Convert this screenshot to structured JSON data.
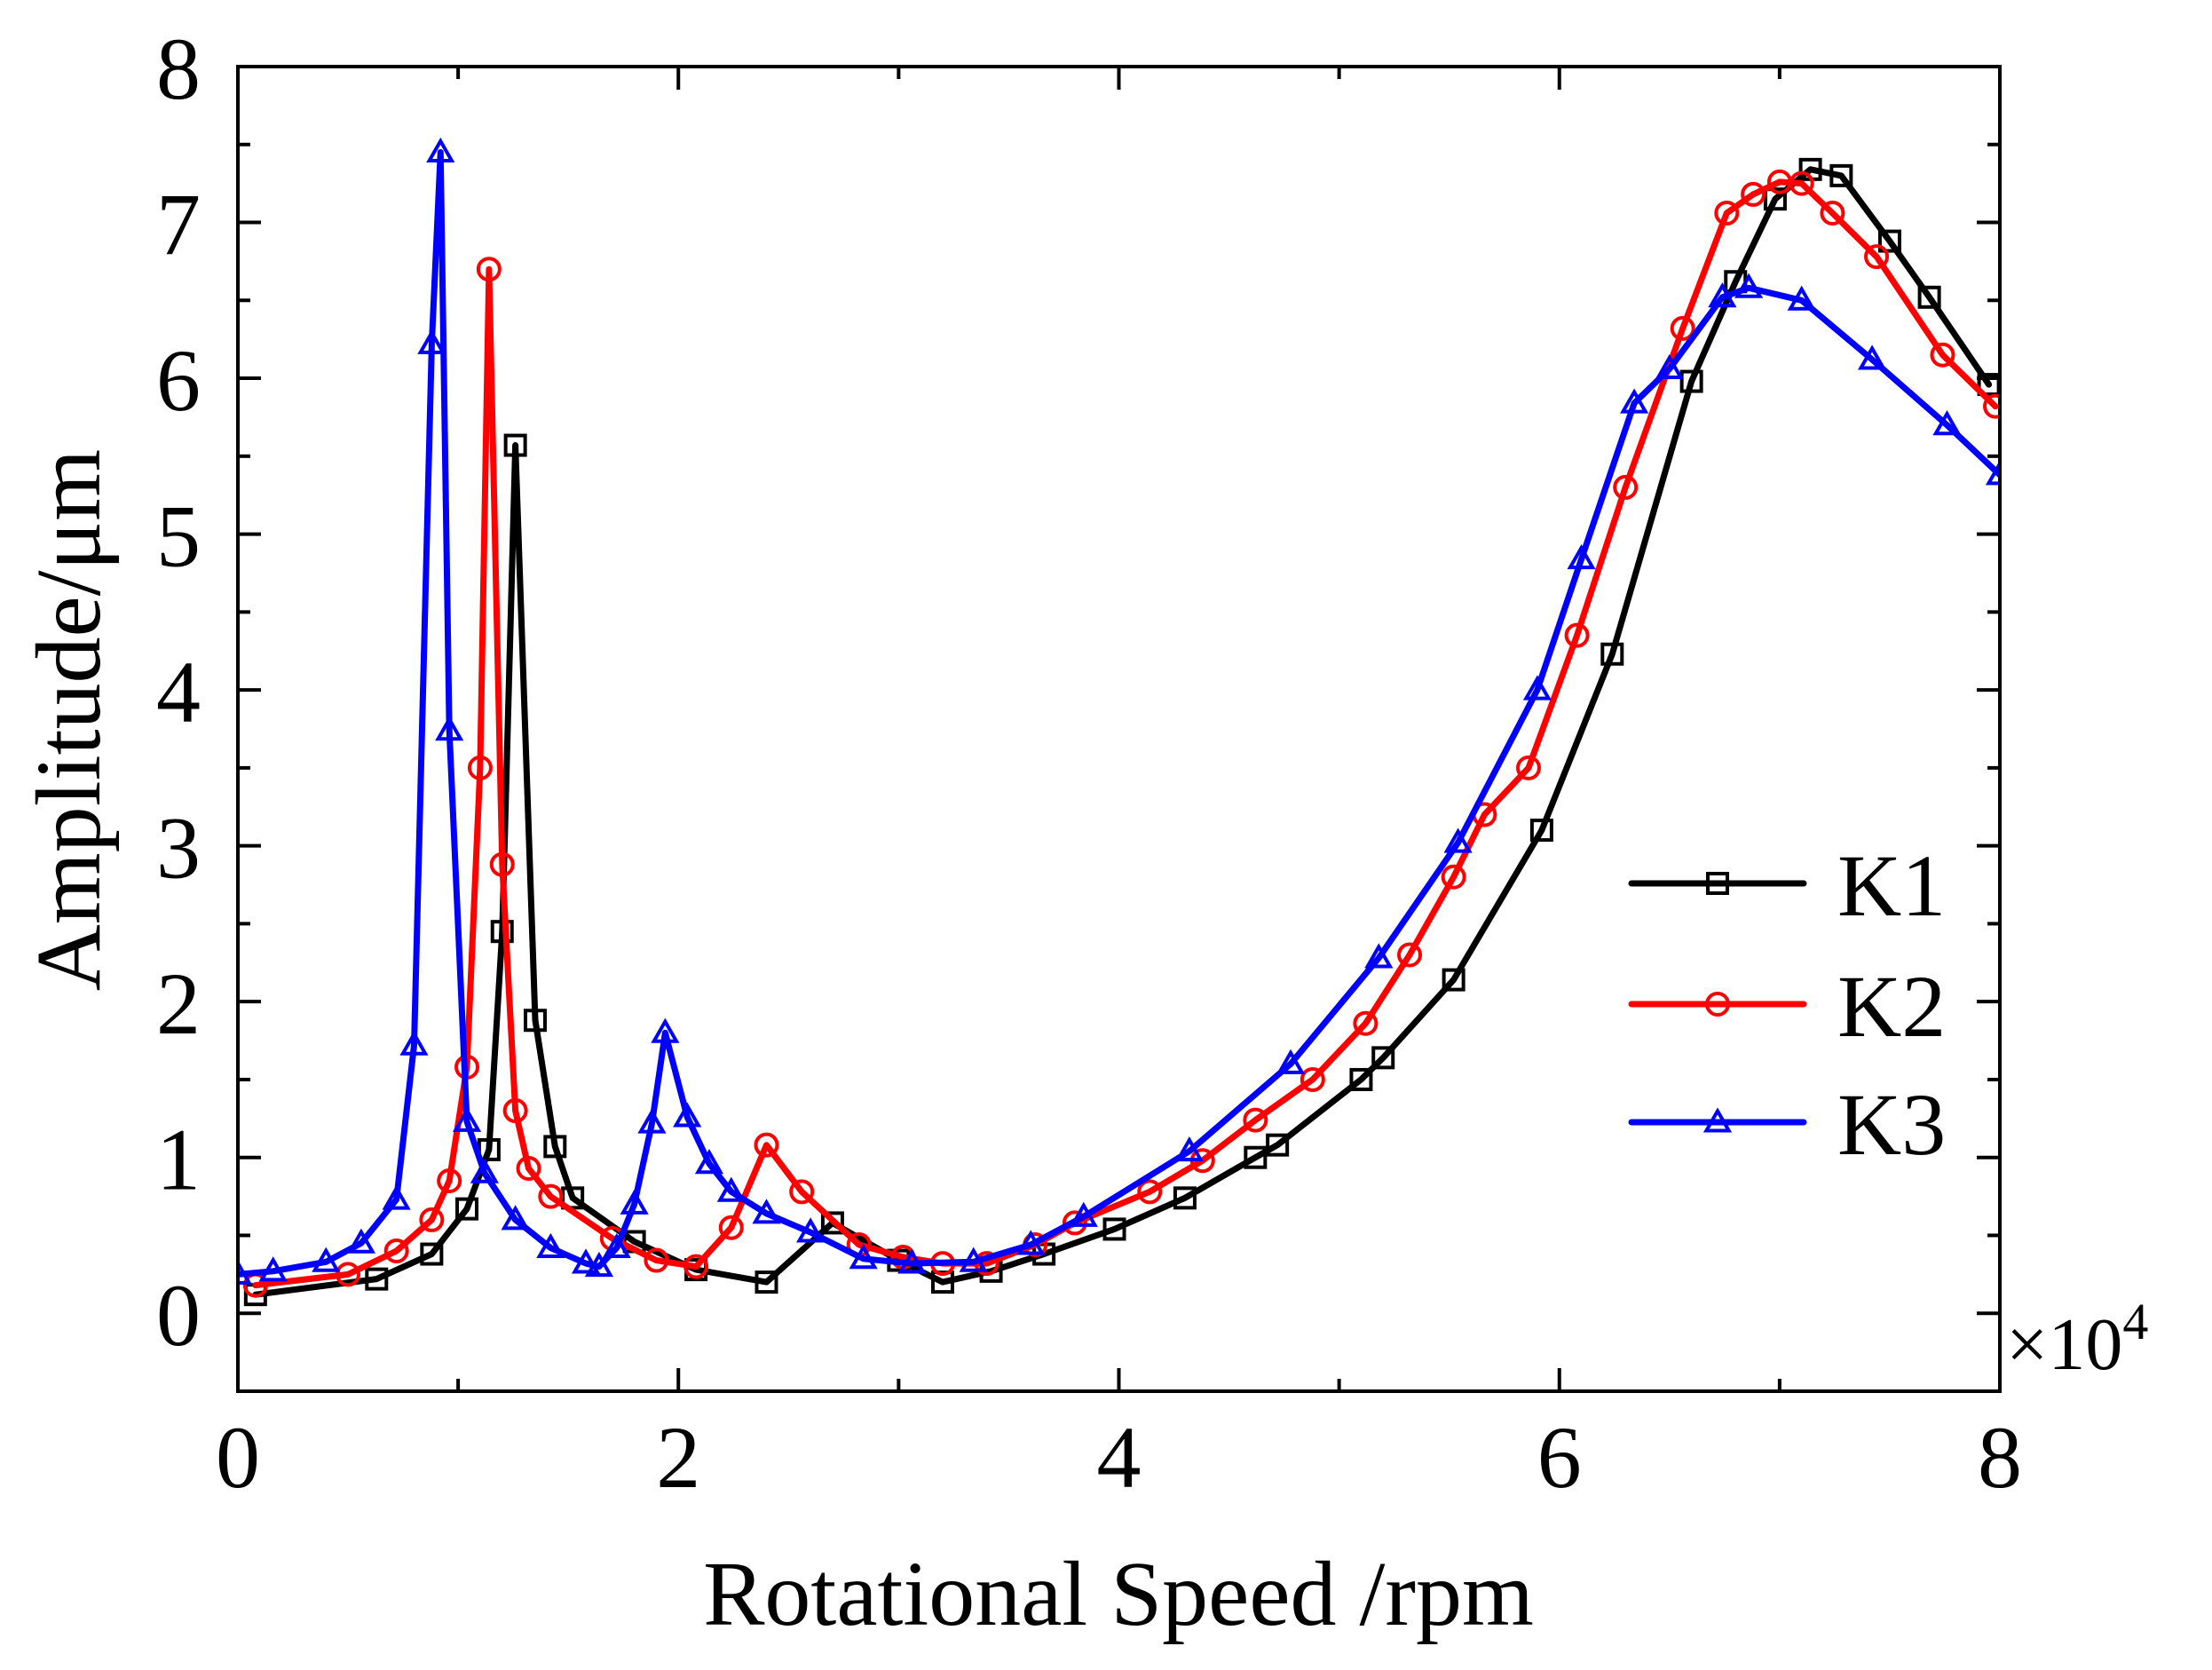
{
  "chart_data": {
    "type": "line",
    "title": "",
    "xlabel": "Rotational Speed /rpm",
    "ylabel": "Amplitude/μm",
    "x_multiplier_base": "×10",
    "x_multiplier_exp": "4",
    "xlim": [
      0,
      8
    ],
    "ylim": [
      -0.5,
      8
    ],
    "xticks": [
      0,
      2,
      4,
      6,
      8
    ],
    "xtick_labels": [
      "0",
      "2",
      "4",
      "6",
      "8"
    ],
    "yticks": [
      0,
      1,
      2,
      3,
      4,
      5,
      6,
      7,
      8
    ],
    "ytick_labels": [
      "0",
      "1",
      "2",
      "3",
      "4",
      "5",
      "6",
      "7",
      "8"
    ],
    "grid": false,
    "legend_position": "right",
    "series": [
      {
        "name": "K1",
        "color": "#000000",
        "marker": "square",
        "x": [
          0.08,
          0.63,
          0.88,
          1.04,
          1.14,
          1.2,
          1.26,
          1.35,
          1.44,
          1.52,
          1.8,
          2.08,
          2.4,
          2.7,
          3.0,
          3.2,
          3.42,
          3.66,
          3.98,
          4.3,
          4.62,
          4.72,
          5.1,
          5.2,
          5.52,
          5.92,
          6.24,
          6.6,
          6.8,
          6.98,
          7.14,
          7.28,
          7.5,
          7.68,
          7.95
        ],
        "values": [
          0.12,
          0.22,
          0.38,
          0.67,
          1.05,
          2.45,
          5.57,
          1.88,
          1.07,
          0.74,
          0.46,
          0.28,
          0.2,
          0.58,
          0.34,
          0.2,
          0.27,
          0.38,
          0.54,
          0.74,
          1.0,
          1.08,
          1.5,
          1.64,
          2.14,
          3.1,
          4.23,
          5.98,
          6.62,
          7.15,
          7.34,
          7.3,
          6.88,
          6.52,
          5.96
        ]
      },
      {
        "name": "K2",
        "color": "#ff0000",
        "marker": "circle",
        "x": [
          0.08,
          0.5,
          0.72,
          0.88,
          0.96,
          1.04,
          1.1,
          1.14,
          1.2,
          1.26,
          1.32,
          1.42,
          1.7,
          1.9,
          2.08,
          2.24,
          2.4,
          2.56,
          2.82,
          3.02,
          3.2,
          3.4,
          3.62,
          3.8,
          4.14,
          4.38,
          4.62,
          4.88,
          5.12,
          5.32,
          5.52,
          5.66,
          5.86,
          6.08,
          6.3,
          6.56,
          6.76,
          6.88,
          7.0,
          7.1,
          7.24,
          7.44,
          7.74,
          7.98
        ],
        "values": [
          0.18,
          0.25,
          0.4,
          0.6,
          0.85,
          1.58,
          3.5,
          6.7,
          2.88,
          1.3,
          0.93,
          0.75,
          0.48,
          0.34,
          0.3,
          0.55,
          1.08,
          0.78,
          0.44,
          0.36,
          0.32,
          0.32,
          0.44,
          0.58,
          0.78,
          0.98,
          1.24,
          1.5,
          1.86,
          2.3,
          2.8,
          3.2,
          3.5,
          4.35,
          5.3,
          6.32,
          7.06,
          7.18,
          7.26,
          7.25,
          7.06,
          6.78,
          6.15,
          5.82
        ]
      },
      {
        "name": "K3",
        "color": "#0000ff",
        "marker": "triangle",
        "x": [
          0.0,
          0.16,
          0.4,
          0.56,
          0.72,
          0.8,
          0.88,
          0.92,
          0.96,
          1.04,
          1.12,
          1.26,
          1.42,
          1.58,
          1.64,
          1.72,
          1.8,
          1.88,
          1.94,
          2.04,
          2.14,
          2.24,
          2.4,
          2.6,
          2.84,
          3.06,
          3.34,
          3.6,
          3.84,
          4.32,
          4.78,
          5.18,
          5.54,
          5.9,
          6.1,
          6.34,
          6.5,
          6.74,
          6.86,
          7.1,
          7.42,
          7.76,
          8.0
        ],
        "values": [
          0.25,
          0.27,
          0.33,
          0.45,
          0.73,
          1.72,
          6.22,
          7.45,
          3.74,
          1.23,
          0.9,
          0.6,
          0.42,
          0.32,
          0.3,
          0.42,
          0.7,
          1.22,
          1.8,
          1.26,
          0.96,
          0.78,
          0.64,
          0.52,
          0.35,
          0.32,
          0.33,
          0.44,
          0.62,
          1.04,
          1.6,
          2.28,
          3.02,
          4.0,
          4.84,
          5.84,
          6.06,
          6.52,
          6.58,
          6.5,
          6.12,
          5.7,
          5.38
        ]
      }
    ]
  }
}
